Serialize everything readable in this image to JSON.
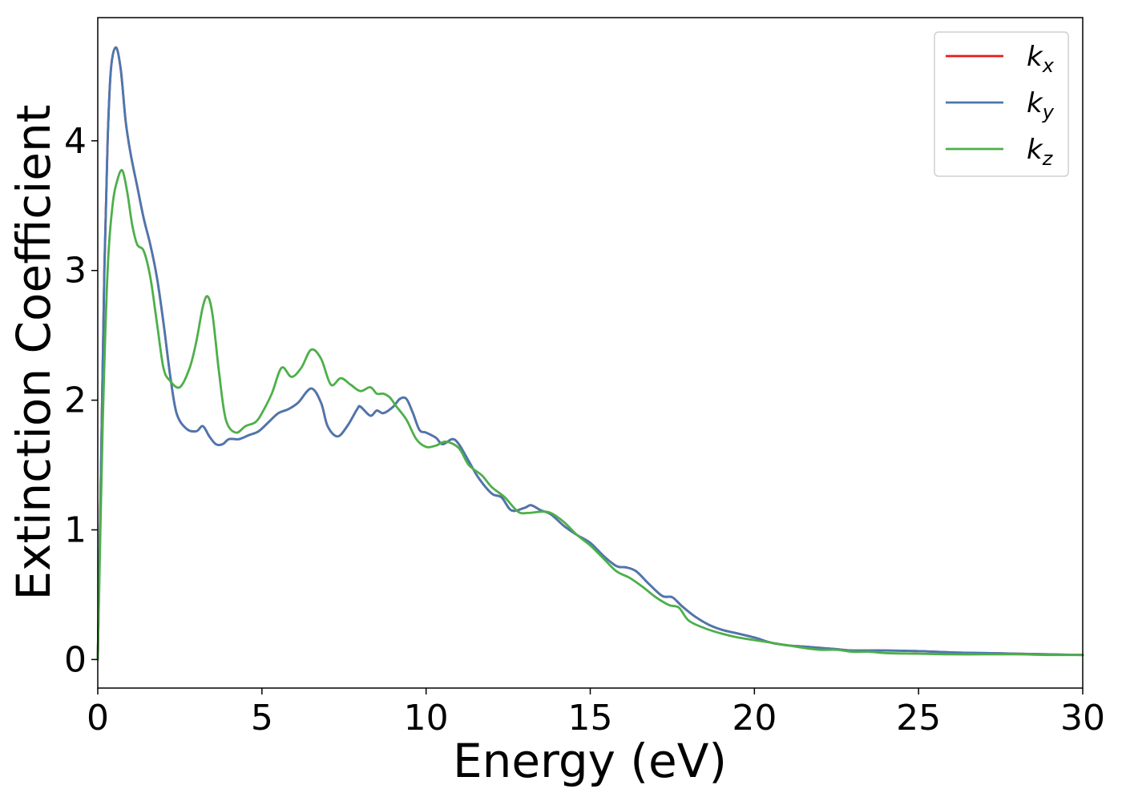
{
  "chart_data": {
    "type": "line",
    "xlabel": "Energy (eV)",
    "ylabel": "Extinction Coefficient",
    "xlim": [
      0,
      30
    ],
    "ylim": [
      -0.22,
      4.95
    ],
    "xticks": [
      0,
      5,
      10,
      15,
      20,
      25,
      30
    ],
    "yticks": [
      0,
      1,
      2,
      3,
      4
    ],
    "grid": false,
    "legend_position": "top-right",
    "series": [
      {
        "name": "k",
        "subscript": "x",
        "color": "#e41a1c",
        "x": [
          0,
          0.1,
          0.2,
          0.3,
          0.4,
          0.55,
          0.7,
          0.85,
          1.0,
          1.2,
          1.4,
          1.6,
          1.8,
          2.0,
          2.2,
          2.4,
          2.7,
          3.0,
          3.2,
          3.4,
          3.6,
          3.8,
          4.0,
          4.3,
          4.6,
          4.9,
          5.2,
          5.5,
          5.8,
          6.1,
          6.5,
          6.8,
          7.0,
          7.3,
          7.6,
          7.9,
          8.0,
          8.3,
          8.5,
          8.7,
          9.0,
          9.2,
          9.4,
          9.6,
          9.8,
          10.0,
          10.3,
          10.5,
          10.8,
          11.0,
          11.3,
          11.6,
          12.0,
          12.3,
          12.6,
          13.0,
          13.2,
          13.5,
          13.8,
          14.2,
          14.6,
          15.0,
          15.4,
          15.8,
          16.1,
          16.4,
          16.8,
          17.2,
          17.5,
          17.8,
          18.2,
          18.6,
          19.0,
          19.5,
          20.0,
          20.5,
          21.0,
          21.5,
          22.0,
          22.5,
          23.0,
          24.0,
          25.0,
          26.0,
          27.0,
          28.0,
          29.0,
          30.0
        ],
        "values": [
          0.0,
          1.5,
          3.0,
          4.0,
          4.55,
          4.72,
          4.55,
          4.15,
          3.9,
          3.65,
          3.4,
          3.2,
          2.95,
          2.6,
          2.2,
          1.9,
          1.78,
          1.76,
          1.8,
          1.72,
          1.66,
          1.66,
          1.7,
          1.7,
          1.73,
          1.76,
          1.83,
          1.9,
          1.93,
          1.98,
          2.09,
          1.98,
          1.8,
          1.72,
          1.8,
          1.93,
          1.95,
          1.88,
          1.92,
          1.9,
          1.95,
          2.01,
          2.01,
          1.9,
          1.77,
          1.75,
          1.71,
          1.66,
          1.7,
          1.66,
          1.53,
          1.4,
          1.28,
          1.25,
          1.15,
          1.17,
          1.19,
          1.15,
          1.12,
          1.03,
          0.96,
          0.9,
          0.8,
          0.72,
          0.71,
          0.68,
          0.58,
          0.49,
          0.48,
          0.41,
          0.33,
          0.27,
          0.23,
          0.2,
          0.17,
          0.13,
          0.11,
          0.1,
          0.09,
          0.08,
          0.07,
          0.07,
          0.065,
          0.055,
          0.05,
          0.045,
          0.04,
          0.035
        ]
      },
      {
        "name": "k",
        "subscript": "y",
        "color": "#4a78b0",
        "x": [
          0,
          0.1,
          0.2,
          0.3,
          0.4,
          0.55,
          0.7,
          0.85,
          1.0,
          1.2,
          1.4,
          1.6,
          1.8,
          2.0,
          2.2,
          2.4,
          2.7,
          3.0,
          3.2,
          3.4,
          3.6,
          3.8,
          4.0,
          4.3,
          4.6,
          4.9,
          5.2,
          5.5,
          5.8,
          6.1,
          6.5,
          6.8,
          7.0,
          7.3,
          7.6,
          7.9,
          8.0,
          8.3,
          8.5,
          8.7,
          9.0,
          9.2,
          9.4,
          9.6,
          9.8,
          10.0,
          10.3,
          10.5,
          10.8,
          11.0,
          11.3,
          11.6,
          12.0,
          12.3,
          12.6,
          13.0,
          13.2,
          13.5,
          13.8,
          14.2,
          14.6,
          15.0,
          15.4,
          15.8,
          16.1,
          16.4,
          16.8,
          17.2,
          17.5,
          17.8,
          18.2,
          18.6,
          19.0,
          19.5,
          20.0,
          20.5,
          21.0,
          21.5,
          22.0,
          22.5,
          23.0,
          24.0,
          25.0,
          26.0,
          27.0,
          28.0,
          29.0,
          30.0
        ],
        "values": [
          0.0,
          1.5,
          3.0,
          4.0,
          4.55,
          4.72,
          4.55,
          4.15,
          3.9,
          3.65,
          3.4,
          3.2,
          2.95,
          2.6,
          2.2,
          1.9,
          1.78,
          1.76,
          1.8,
          1.72,
          1.66,
          1.66,
          1.7,
          1.7,
          1.73,
          1.76,
          1.83,
          1.9,
          1.93,
          1.98,
          2.09,
          1.98,
          1.8,
          1.72,
          1.8,
          1.93,
          1.95,
          1.88,
          1.92,
          1.9,
          1.95,
          2.01,
          2.01,
          1.9,
          1.77,
          1.75,
          1.71,
          1.66,
          1.7,
          1.66,
          1.53,
          1.4,
          1.28,
          1.25,
          1.15,
          1.17,
          1.19,
          1.15,
          1.12,
          1.03,
          0.96,
          0.9,
          0.8,
          0.72,
          0.71,
          0.68,
          0.58,
          0.49,
          0.48,
          0.41,
          0.33,
          0.27,
          0.23,
          0.2,
          0.17,
          0.13,
          0.11,
          0.1,
          0.09,
          0.08,
          0.07,
          0.07,
          0.065,
          0.055,
          0.05,
          0.045,
          0.04,
          0.035
        ]
      },
      {
        "name": "k",
        "subscript": "z",
        "color": "#4daf4a",
        "x": [
          0,
          0.15,
          0.3,
          0.45,
          0.6,
          0.75,
          0.9,
          1.05,
          1.2,
          1.4,
          1.6,
          1.8,
          2.0,
          2.2,
          2.5,
          2.8,
          3.0,
          3.2,
          3.35,
          3.5,
          3.7,
          3.9,
          4.2,
          4.5,
          4.8,
          5.0,
          5.3,
          5.6,
          5.9,
          6.2,
          6.5,
          6.8,
          7.1,
          7.4,
          7.7,
          8.0,
          8.3,
          8.5,
          8.7,
          8.9,
          9.1,
          9.4,
          9.7,
          10.0,
          10.3,
          10.6,
          11.0,
          11.3,
          11.7,
          12.0,
          12.4,
          12.8,
          13.1,
          13.5,
          13.8,
          14.2,
          14.6,
          15.0,
          15.4,
          15.8,
          16.2,
          16.6,
          17.0,
          17.4,
          17.7,
          18.0,
          18.5,
          19.0,
          19.5,
          20.0,
          20.5,
          21.0,
          21.5,
          22.0,
          22.5,
          23.0,
          23.5,
          24.0,
          25.0,
          26.0,
          27.0,
          28.0,
          29.0,
          30.0
        ],
        "values": [
          0.0,
          1.8,
          3.0,
          3.5,
          3.7,
          3.77,
          3.6,
          3.35,
          3.2,
          3.15,
          2.95,
          2.6,
          2.25,
          2.15,
          2.1,
          2.25,
          2.45,
          2.72,
          2.8,
          2.65,
          2.2,
          1.85,
          1.75,
          1.8,
          1.83,
          1.9,
          2.05,
          2.25,
          2.18,
          2.25,
          2.39,
          2.32,
          2.12,
          2.17,
          2.12,
          2.07,
          2.1,
          2.05,
          2.05,
          2.02,
          1.95,
          1.85,
          1.7,
          1.64,
          1.65,
          1.68,
          1.63,
          1.5,
          1.42,
          1.33,
          1.25,
          1.14,
          1.13,
          1.14,
          1.13,
          1.06,
          0.96,
          0.88,
          0.78,
          0.68,
          0.63,
          0.56,
          0.48,
          0.42,
          0.4,
          0.3,
          0.24,
          0.2,
          0.17,
          0.15,
          0.13,
          0.11,
          0.09,
          0.075,
          0.075,
          0.06,
          0.06,
          0.05,
          0.045,
          0.04,
          0.04,
          0.04,
          0.035,
          0.035
        ]
      }
    ]
  }
}
